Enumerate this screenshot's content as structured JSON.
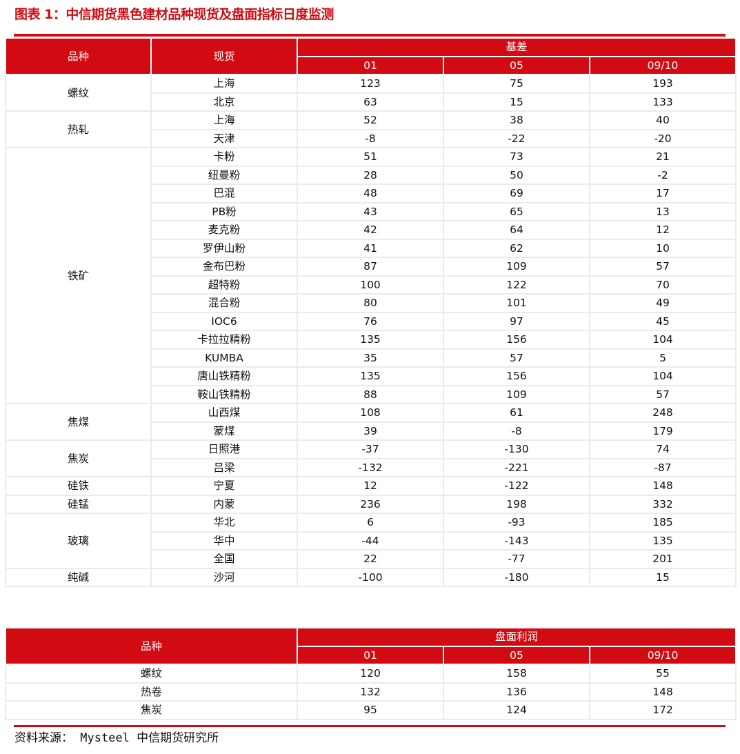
{
  "title": "图表 1：中信期货黑色建材品种现货及盘面指标日度监测",
  "basis_table": {
    "headers": {
      "variety": "品种",
      "spot": "现货",
      "group": "基差",
      "contracts": [
        "01",
        "05",
        "09/10"
      ]
    },
    "groups": [
      {
        "variety": "螺纹",
        "rows": [
          [
            "上海",
            "123",
            "75",
            "193"
          ],
          [
            "北京",
            "63",
            "15",
            "133"
          ]
        ]
      },
      {
        "variety": "热轧",
        "rows": [
          [
            "上海",
            "52",
            "38",
            "40"
          ],
          [
            "天津",
            "-8",
            "-22",
            "-20"
          ]
        ]
      },
      {
        "variety": "铁矿",
        "rows": [
          [
            "卡粉",
            "51",
            "73",
            "21"
          ],
          [
            "纽曼粉",
            "28",
            "50",
            "-2"
          ],
          [
            "巴混",
            "48",
            "69",
            "17"
          ],
          [
            "PB粉",
            "43",
            "65",
            "13"
          ],
          [
            "麦克粉",
            "42",
            "64",
            "12"
          ],
          [
            "罗伊山粉",
            "41",
            "62",
            "10"
          ],
          [
            "金布巴粉",
            "87",
            "109",
            "57"
          ],
          [
            "超特粉",
            "100",
            "122",
            "70"
          ],
          [
            "混合粉",
            "80",
            "101",
            "49"
          ],
          [
            "IOC6",
            "76",
            "97",
            "45"
          ],
          [
            "卡拉拉精粉",
            "135",
            "156",
            "104"
          ],
          [
            "KUMBA",
            "35",
            "57",
            "5"
          ],
          [
            "唐山铁精粉",
            "135",
            "156",
            "104"
          ],
          [
            "鞍山铁精粉",
            "88",
            "109",
            "57"
          ]
        ]
      },
      {
        "variety": "焦煤",
        "rows": [
          [
            "山西煤",
            "108",
            "61",
            "248"
          ],
          [
            "蒙煤",
            "39",
            "-8",
            "179"
          ]
        ]
      },
      {
        "variety": "焦炭",
        "rows": [
          [
            "日照港",
            "-37",
            "-130",
            "74"
          ],
          [
            "吕梁",
            "-132",
            "-221",
            "-87"
          ]
        ]
      },
      {
        "variety": "硅铁",
        "rows": [
          [
            "宁夏",
            "12",
            "-122",
            "148"
          ]
        ]
      },
      {
        "variety": "硅锰",
        "rows": [
          [
            "内蒙",
            "236",
            "198",
            "332"
          ]
        ]
      },
      {
        "variety": "玻璃",
        "rows": [
          [
            "华北",
            "6",
            "-93",
            "185"
          ],
          [
            "华中",
            "-44",
            "-143",
            "135"
          ],
          [
            "全国",
            "22",
            "-77",
            "201"
          ]
        ]
      },
      {
        "variety": "纯碱",
        "rows": [
          [
            "沙河",
            "-100",
            "-180",
            "15"
          ]
        ]
      }
    ]
  },
  "profit_table": {
    "headers": {
      "variety": "品种",
      "group": "盘面利润",
      "contracts": [
        "01",
        "05",
        "09/10"
      ]
    },
    "rows": [
      [
        "螺纹",
        "120",
        "158",
        "55"
      ],
      [
        "热卷",
        "132",
        "136",
        "148"
      ],
      [
        "焦炭",
        "95",
        "124",
        "172"
      ]
    ]
  },
  "source": "资料来源： Mysteel 中信期货研究所",
  "colors": {
    "accent": "#d20a11",
    "grid": "#ecebe5"
  }
}
